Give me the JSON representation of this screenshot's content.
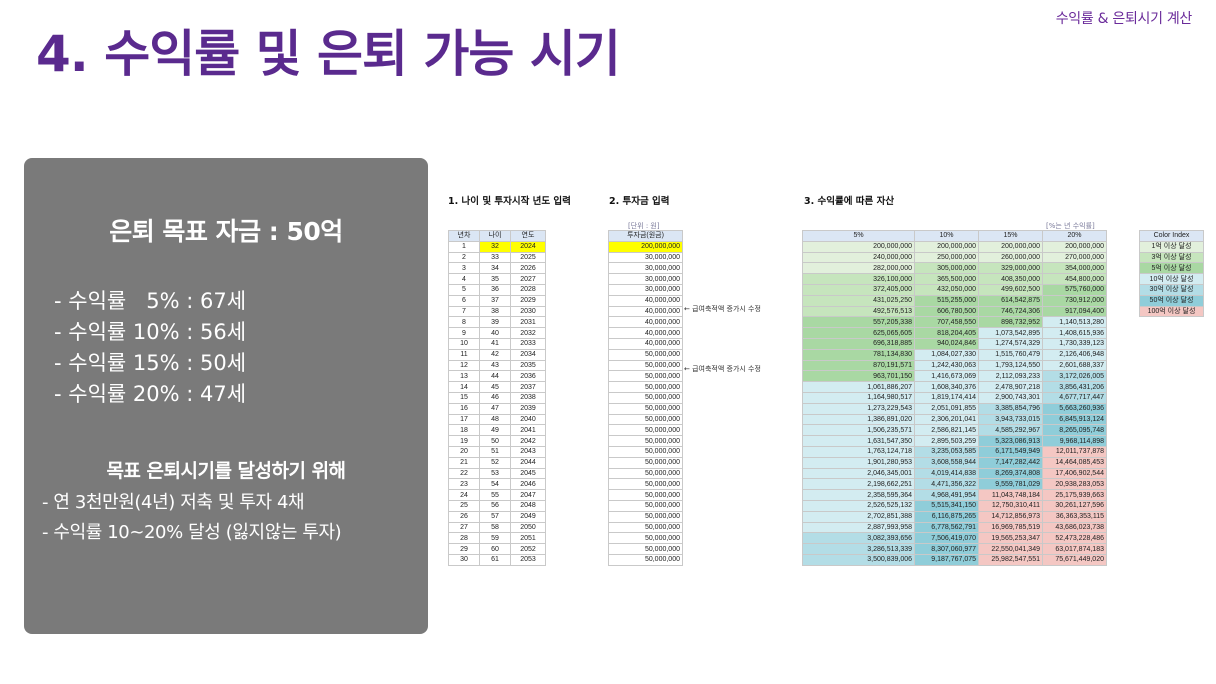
{
  "header": {
    "tag": "수익률 & 은퇴시기 계산",
    "title": "4. 수익률 및 은퇴 가능 시기"
  },
  "summary": {
    "goal": "은퇴 목표 자금 : 50억",
    "rates": [
      "- 수익률   5% : 67세",
      "- 수익률 10% : 56세",
      "- 수익률 15% : 50세",
      "- 수익률 20% : 47세"
    ],
    "to_achieve_title": "목표 은퇴시기를 달성하기 위해",
    "to_achieve_items": [
      "- 연 3천만원(4년) 저축 및 투자 4채",
      "- 수익률 10~20% 달성 (잃지않는 투자)"
    ]
  },
  "section1": {
    "title": "1. 나이 및 투자시작 년도 입력",
    "headers": [
      "년차",
      "나이",
      "연도"
    ],
    "rows": [
      [
        "1",
        "32",
        "2024"
      ],
      [
        "2",
        "33",
        "2025"
      ],
      [
        "3",
        "34",
        "2026"
      ],
      [
        "4",
        "35",
        "2027"
      ],
      [
        "5",
        "36",
        "2028"
      ],
      [
        "6",
        "37",
        "2029"
      ],
      [
        "7",
        "38",
        "2030"
      ],
      [
        "8",
        "39",
        "2031"
      ],
      [
        "9",
        "40",
        "2032"
      ],
      [
        "10",
        "41",
        "2033"
      ],
      [
        "11",
        "42",
        "2034"
      ],
      [
        "12",
        "43",
        "2035"
      ],
      [
        "13",
        "44",
        "2036"
      ],
      [
        "14",
        "45",
        "2037"
      ],
      [
        "15",
        "46",
        "2038"
      ],
      [
        "16",
        "47",
        "2039"
      ],
      [
        "17",
        "48",
        "2040"
      ],
      [
        "18",
        "49",
        "2041"
      ],
      [
        "19",
        "50",
        "2042"
      ],
      [
        "20",
        "51",
        "2043"
      ],
      [
        "21",
        "52",
        "2044"
      ],
      [
        "22",
        "53",
        "2045"
      ],
      [
        "23",
        "54",
        "2046"
      ],
      [
        "24",
        "55",
        "2047"
      ],
      [
        "25",
        "56",
        "2048"
      ],
      [
        "26",
        "57",
        "2049"
      ],
      [
        "27",
        "58",
        "2050"
      ],
      [
        "28",
        "59",
        "2051"
      ],
      [
        "29",
        "60",
        "2052"
      ],
      [
        "30",
        "61",
        "2053"
      ]
    ]
  },
  "section2": {
    "title": "2. 투자금 입력",
    "unit": "[단위 : 원]",
    "header": "투자금(원금)",
    "values": [
      "200,000,000",
      "30,000,000",
      "30,000,000",
      "30,000,000",
      "30,000,000",
      "40,000,000",
      "40,000,000",
      "40,000,000",
      "40,000,000",
      "40,000,000",
      "50,000,000",
      "50,000,000",
      "50,000,000",
      "50,000,000",
      "50,000,000",
      "50,000,000",
      "50,000,000",
      "50,000,000",
      "50,000,000",
      "50,000,000",
      "50,000,000",
      "50,000,000",
      "50,000,000",
      "50,000,000",
      "50,000,000",
      "50,000,000",
      "50,000,000",
      "50,000,000",
      "50,000,000",
      "50,000,000"
    ],
    "note1": "← 급여축적액 증가시 수정",
    "note2": "← 급여축적액 증가시 수정"
  },
  "section3": {
    "title": "3. 수익률에 따른 자산",
    "unit": "[%는 년 수익률]",
    "headers": [
      "5%",
      "10%",
      "15%",
      "20%"
    ],
    "rows": [
      [
        "200,000,000",
        "200,000,000",
        "200,000,000",
        "200,000,000"
      ],
      [
        "240,000,000",
        "250,000,000",
        "260,000,000",
        "270,000,000"
      ],
      [
        "282,000,000",
        "305,000,000",
        "329,000,000",
        "354,000,000"
      ],
      [
        "326,100,000",
        "365,500,000",
        "408,350,000",
        "454,800,000"
      ],
      [
        "372,405,000",
        "432,050,000",
        "499,602,500",
        "575,760,000"
      ],
      [
        "431,025,250",
        "515,255,000",
        "614,542,875",
        "730,912,000"
      ],
      [
        "492,576,513",
        "606,780,500",
        "746,724,306",
        "917,094,400"
      ],
      [
        "557,205,338",
        "707,458,550",
        "898,732,952",
        "1,140,513,280"
      ],
      [
        "625,065,605",
        "818,204,405",
        "1,073,542,895",
        "1,408,615,936"
      ],
      [
        "696,318,885",
        "940,024,846",
        "1,274,574,329",
        "1,730,339,123"
      ],
      [
        "781,134,830",
        "1,084,027,330",
        "1,515,760,479",
        "2,126,406,948"
      ],
      [
        "870,191,571",
        "1,242,430,063",
        "1,793,124,550",
        "2,601,688,337"
      ],
      [
        "963,701,150",
        "1,416,673,069",
        "2,112,093,233",
        "3,172,026,005"
      ],
      [
        "1,061,886,207",
        "1,608,340,376",
        "2,478,907,218",
        "3,856,431,206"
      ],
      [
        "1,164,980,517",
        "1,819,174,414",
        "2,900,743,301",
        "4,677,717,447"
      ],
      [
        "1,273,229,543",
        "2,051,091,855",
        "3,385,854,796",
        "5,663,260,936"
      ],
      [
        "1,386,891,020",
        "2,306,201,041",
        "3,943,733,015",
        "6,845,913,124"
      ],
      [
        "1,506,235,571",
        "2,586,821,145",
        "4,585,292,967",
        "8,265,095,748"
      ],
      [
        "1,631,547,350",
        "2,895,503,259",
        "5,323,086,913",
        "9,968,114,898"
      ],
      [
        "1,763,124,718",
        "3,235,053,585",
        "6,171,549,949",
        "12,011,737,878"
      ],
      [
        "1,901,280,953",
        "3,608,558,944",
        "7,147,282,442",
        "14,464,085,453"
      ],
      [
        "2,046,345,001",
        "4,019,414,838",
        "8,269,374,808",
        "17,406,902,544"
      ],
      [
        "2,198,662,251",
        "4,471,356,322",
        "9,559,781,029",
        "20,938,283,053"
      ],
      [
        "2,358,595,364",
        "4,968,491,954",
        "11,043,748,184",
        "25,175,939,663"
      ],
      [
        "2,526,525,132",
        "5,515,341,150",
        "12,750,310,411",
        "30,261,127,596"
      ],
      [
        "2,702,851,388",
        "6,116,875,265",
        "14,712,856,973",
        "36,363,353,115"
      ],
      [
        "2,887,993,958",
        "6,778,562,791",
        "16,969,785,519",
        "43,686,023,738"
      ],
      [
        "3,082,393,656",
        "7,506,419,070",
        "19,565,253,347",
        "52,473,228,486"
      ],
      [
        "3,286,513,339",
        "8,307,060,977",
        "22,550,041,349",
        "63,017,874,183"
      ],
      [
        "3,500,839,006",
        "9,187,767,075",
        "25,982,547,551",
        "75,671,449,020"
      ]
    ]
  },
  "color_index": {
    "title": "Color Index",
    "items": [
      {
        "label": "1억 이상 달성",
        "color": "#e2f0dc"
      },
      {
        "label": "3억 이상 달성",
        "color": "#c6e5bd"
      },
      {
        "label": "5억 이상 달성",
        "color": "#a9d8a3"
      },
      {
        "label": "10억 이상 달성",
        "color": "#d3ecf1"
      },
      {
        "label": "30억 이상 달성",
        "color": "#b3dde6"
      },
      {
        "label": "50억 이상 달성",
        "color": "#8fcdd9"
      },
      {
        "label": "100억 이상 달성",
        "color": "#f4c7c3"
      }
    ]
  }
}
